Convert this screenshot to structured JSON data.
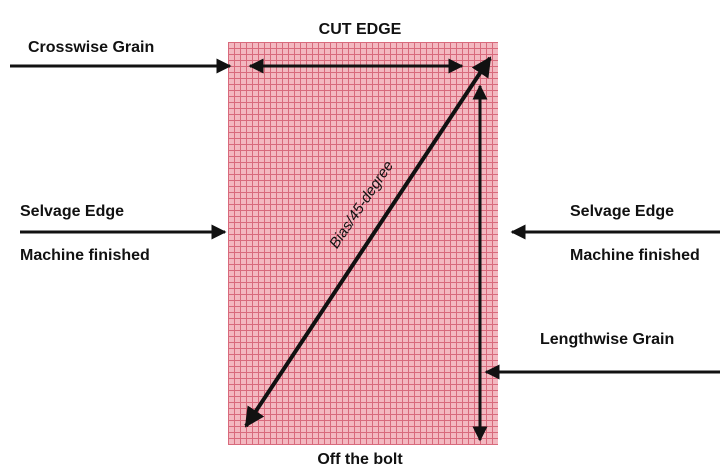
{
  "labels": {
    "cut_edge": "CUT EDGE",
    "crosswise_grain": "Crosswise Grain",
    "selvage_left": "Selvage Edge",
    "machine_left": "Machine finished",
    "selvage_right": "Selvage Edge",
    "machine_right": "Machine finished",
    "lengthwise_grain": "Lengthwise Grain",
    "bias": "Bias/45-degree",
    "off_bolt": "Off the bolt"
  }
}
